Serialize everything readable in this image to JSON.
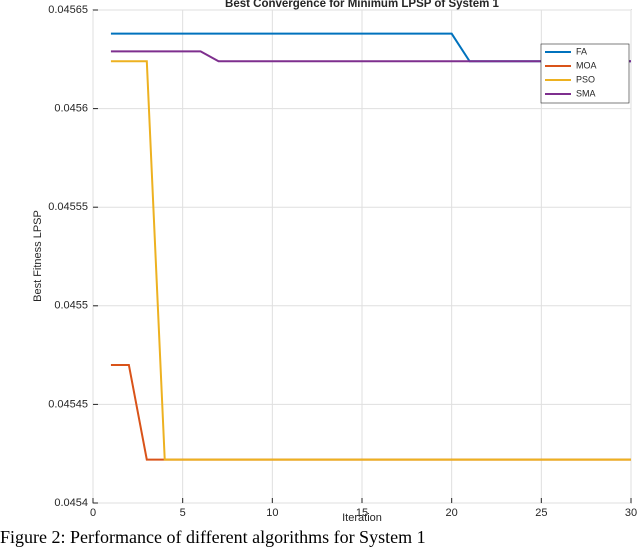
{
  "chart_data": {
    "type": "line",
    "title": "Best Convergence for Minimum LPSP of System 1",
    "xlabel": "Iteration",
    "ylabel": "Best Fitness LPSP",
    "x": [
      1,
      2,
      3,
      4,
      5,
      6,
      7,
      8,
      9,
      10,
      11,
      12,
      13,
      14,
      15,
      16,
      17,
      18,
      19,
      20,
      21,
      22,
      23,
      24,
      25,
      26,
      27,
      28,
      29,
      30
    ],
    "series": [
      {
        "name": "FA",
        "color": "#0072bd",
        "values": [
          0.045638,
          0.045638,
          0.045638,
          0.045638,
          0.045638,
          0.045638,
          0.045638,
          0.045638,
          0.045638,
          0.045638,
          0.045638,
          0.045638,
          0.045638,
          0.045638,
          0.045638,
          0.045638,
          0.045638,
          0.045638,
          0.045638,
          0.045638,
          0.045624,
          0.045624,
          0.045624,
          0.045624,
          0.045624,
          0.045624,
          0.045624,
          0.045624,
          0.045624,
          0.045624
        ]
      },
      {
        "name": "MOA",
        "color": "#d95319",
        "values": [
          0.04547,
          0.04547,
          0.045422,
          0.045422,
          0.045422,
          0.045422,
          0.045422,
          0.045422,
          0.045422,
          0.045422,
          0.045422,
          0.045422,
          0.045422,
          0.045422,
          0.045422,
          0.045422,
          0.045422,
          0.045422,
          0.045422,
          0.045422,
          0.045422,
          0.045422,
          0.045422,
          0.045422,
          0.045422,
          0.045422,
          0.045422,
          0.045422,
          0.045422,
          0.045422
        ]
      },
      {
        "name": "PSO",
        "color": "#edb120",
        "values": [
          0.045624,
          0.045624,
          0.045624,
          0.045422,
          0.045422,
          0.045422,
          0.045422,
          0.045422,
          0.045422,
          0.045422,
          0.045422,
          0.045422,
          0.045422,
          0.045422,
          0.045422,
          0.045422,
          0.045422,
          0.045422,
          0.045422,
          0.045422,
          0.045422,
          0.045422,
          0.045422,
          0.045422,
          0.045422,
          0.045422,
          0.045422,
          0.045422,
          0.045422,
          0.045422
        ]
      },
      {
        "name": "SMA",
        "color": "#7e2f8e",
        "values": [
          0.045629,
          0.045629,
          0.045629,
          0.045629,
          0.045629,
          0.045629,
          0.045624,
          0.045624,
          0.045624,
          0.045624,
          0.045624,
          0.045624,
          0.045624,
          0.045624,
          0.045624,
          0.045624,
          0.045624,
          0.045624,
          0.045624,
          0.045624,
          0.045624,
          0.045624,
          0.045624,
          0.045624,
          0.045624,
          0.045624,
          0.045624,
          0.045624,
          0.045624,
          0.045624
        ]
      }
    ],
    "xlim": [
      0,
      30
    ],
    "xticks": [
      0,
      5,
      10,
      15,
      20,
      25,
      30
    ],
    "ylim": [
      0.0454,
      0.04565
    ],
    "yticks": [
      0.0454,
      0.04545,
      0.0455,
      0.04555,
      0.0456,
      0.04565
    ],
    "grid": true,
    "legend": "upper right"
  },
  "caption": "Figure 2: Performance of different algorithms for System 1"
}
